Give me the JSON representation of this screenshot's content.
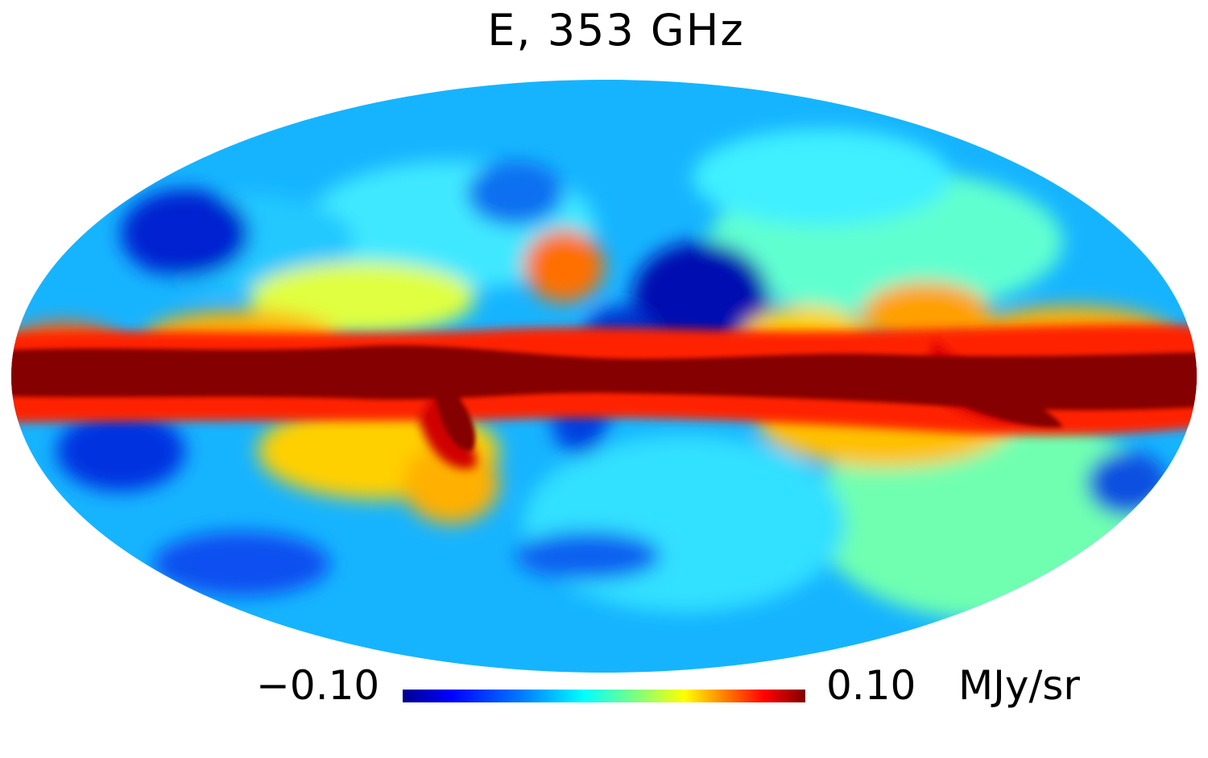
{
  "title": "E, 353 GHz",
  "colorbar": {
    "min_label": "−0.10",
    "max_label": "0.10",
    "unit": "MJy/sr",
    "colormap": "jet",
    "colors": [
      "#00008f",
      "#0000ff",
      "#007fff",
      "#00ffff",
      "#7fff7f",
      "#ffff00",
      "#ff7f00",
      "#ff0000",
      "#800000"
    ]
  },
  "map": {
    "projection": "Mollweide",
    "background_color": "#00c8ff",
    "plane_color": "#8b0000"
  }
}
